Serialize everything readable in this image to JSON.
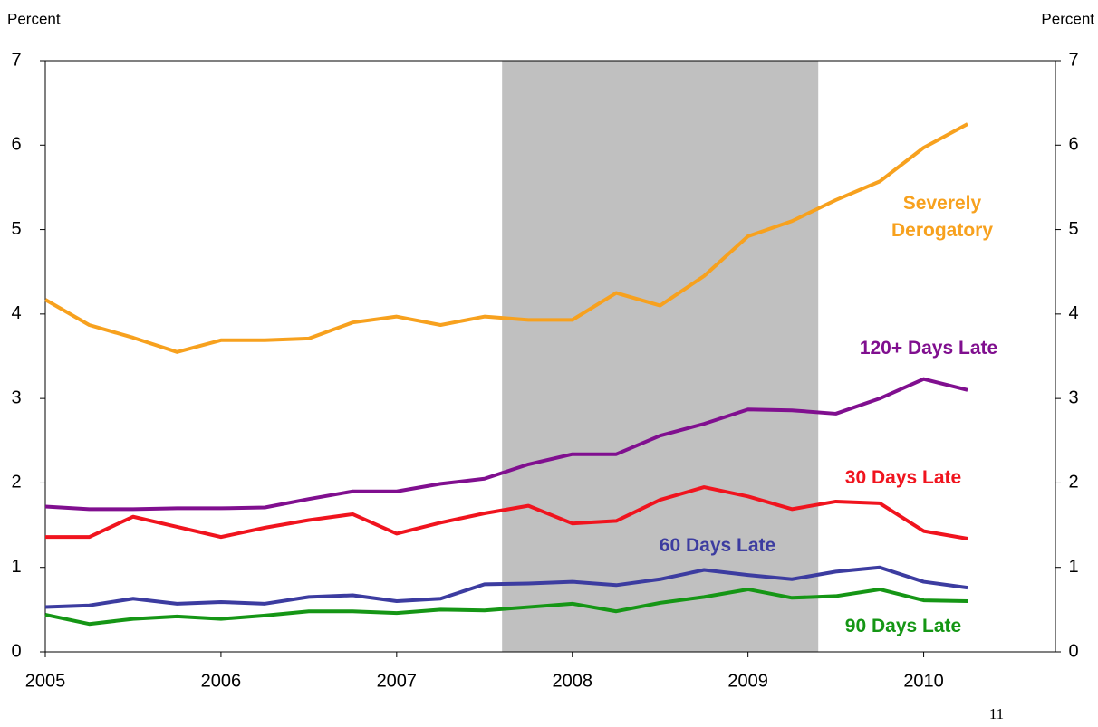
{
  "chart_data": {
    "type": "line",
    "y_label": "Percent",
    "y2_label": "Percent",
    "page_number": "11",
    "x": [
      2005,
      2005.25,
      2005.5,
      2005.75,
      2006,
      2006.25,
      2006.5,
      2006.75,
      2007,
      2007.25,
      2007.5,
      2007.75,
      2008,
      2008.25,
      2008.5,
      2008.75,
      2009,
      2009.25,
      2009.5,
      2009.75,
      2010,
      2010.25
    ],
    "xlim": [
      2005,
      2010.75
    ],
    "xticks": [
      2005,
      2006,
      2007,
      2008,
      2009,
      2010
    ],
    "ylim": [
      0,
      7
    ],
    "yticks": [
      0,
      1,
      2,
      3,
      4,
      5,
      6,
      7
    ],
    "y2lim": [
      0,
      7
    ],
    "y2ticks": [
      0,
      1,
      2,
      3,
      4,
      5,
      6,
      7
    ],
    "shaded_range": [
      2007.6,
      2009.4
    ],
    "shaded_color": "#c0c0c0",
    "series": [
      {
        "name": "Severely Derogatory",
        "color": "#f7a11e",
        "values": [
          4.17,
          3.87,
          3.72,
          3.55,
          3.69,
          3.69,
          3.71,
          3.9,
          3.97,
          3.87,
          3.97,
          3.93,
          3.93,
          4.25,
          4.1,
          4.45,
          4.92,
          5.1,
          5.35,
          5.57,
          5.97,
          6.25
        ]
      },
      {
        "name": "120+ Days Late",
        "color": "#800f8f",
        "values": [
          1.72,
          1.69,
          1.69,
          1.7,
          1.7,
          1.71,
          1.81,
          1.9,
          1.9,
          1.99,
          2.05,
          2.22,
          2.34,
          2.34,
          2.56,
          2.7,
          2.87,
          2.86,
          2.82,
          3.0,
          3.23,
          3.1
        ]
      },
      {
        "name": "30 Days Late",
        "color": "#f0141e",
        "values": [
          1.36,
          1.36,
          1.6,
          1.48,
          1.36,
          1.47,
          1.56,
          1.63,
          1.4,
          1.53,
          1.64,
          1.73,
          1.52,
          1.55,
          1.8,
          1.95,
          1.84,
          1.69,
          1.78,
          1.76,
          1.43,
          1.34
        ]
      },
      {
        "name": "60 Days Late",
        "color": "#3c3ca0",
        "values": [
          0.53,
          0.55,
          0.63,
          0.57,
          0.59,
          0.57,
          0.65,
          0.67,
          0.6,
          0.63,
          0.8,
          0.81,
          0.83,
          0.79,
          0.86,
          0.97,
          0.91,
          0.86,
          0.95,
          1.0,
          0.83,
          0.76
        ]
      },
      {
        "name": "90 Days Late",
        "color": "#159615",
        "values": [
          0.44,
          0.33,
          0.39,
          0.42,
          0.39,
          0.43,
          0.48,
          0.48,
          0.46,
          0.5,
          0.49,
          0.53,
          0.57,
          0.48,
          0.58,
          0.65,
          0.74,
          0.64,
          0.66,
          0.74,
          0.61,
          0.6
        ]
      }
    ]
  }
}
